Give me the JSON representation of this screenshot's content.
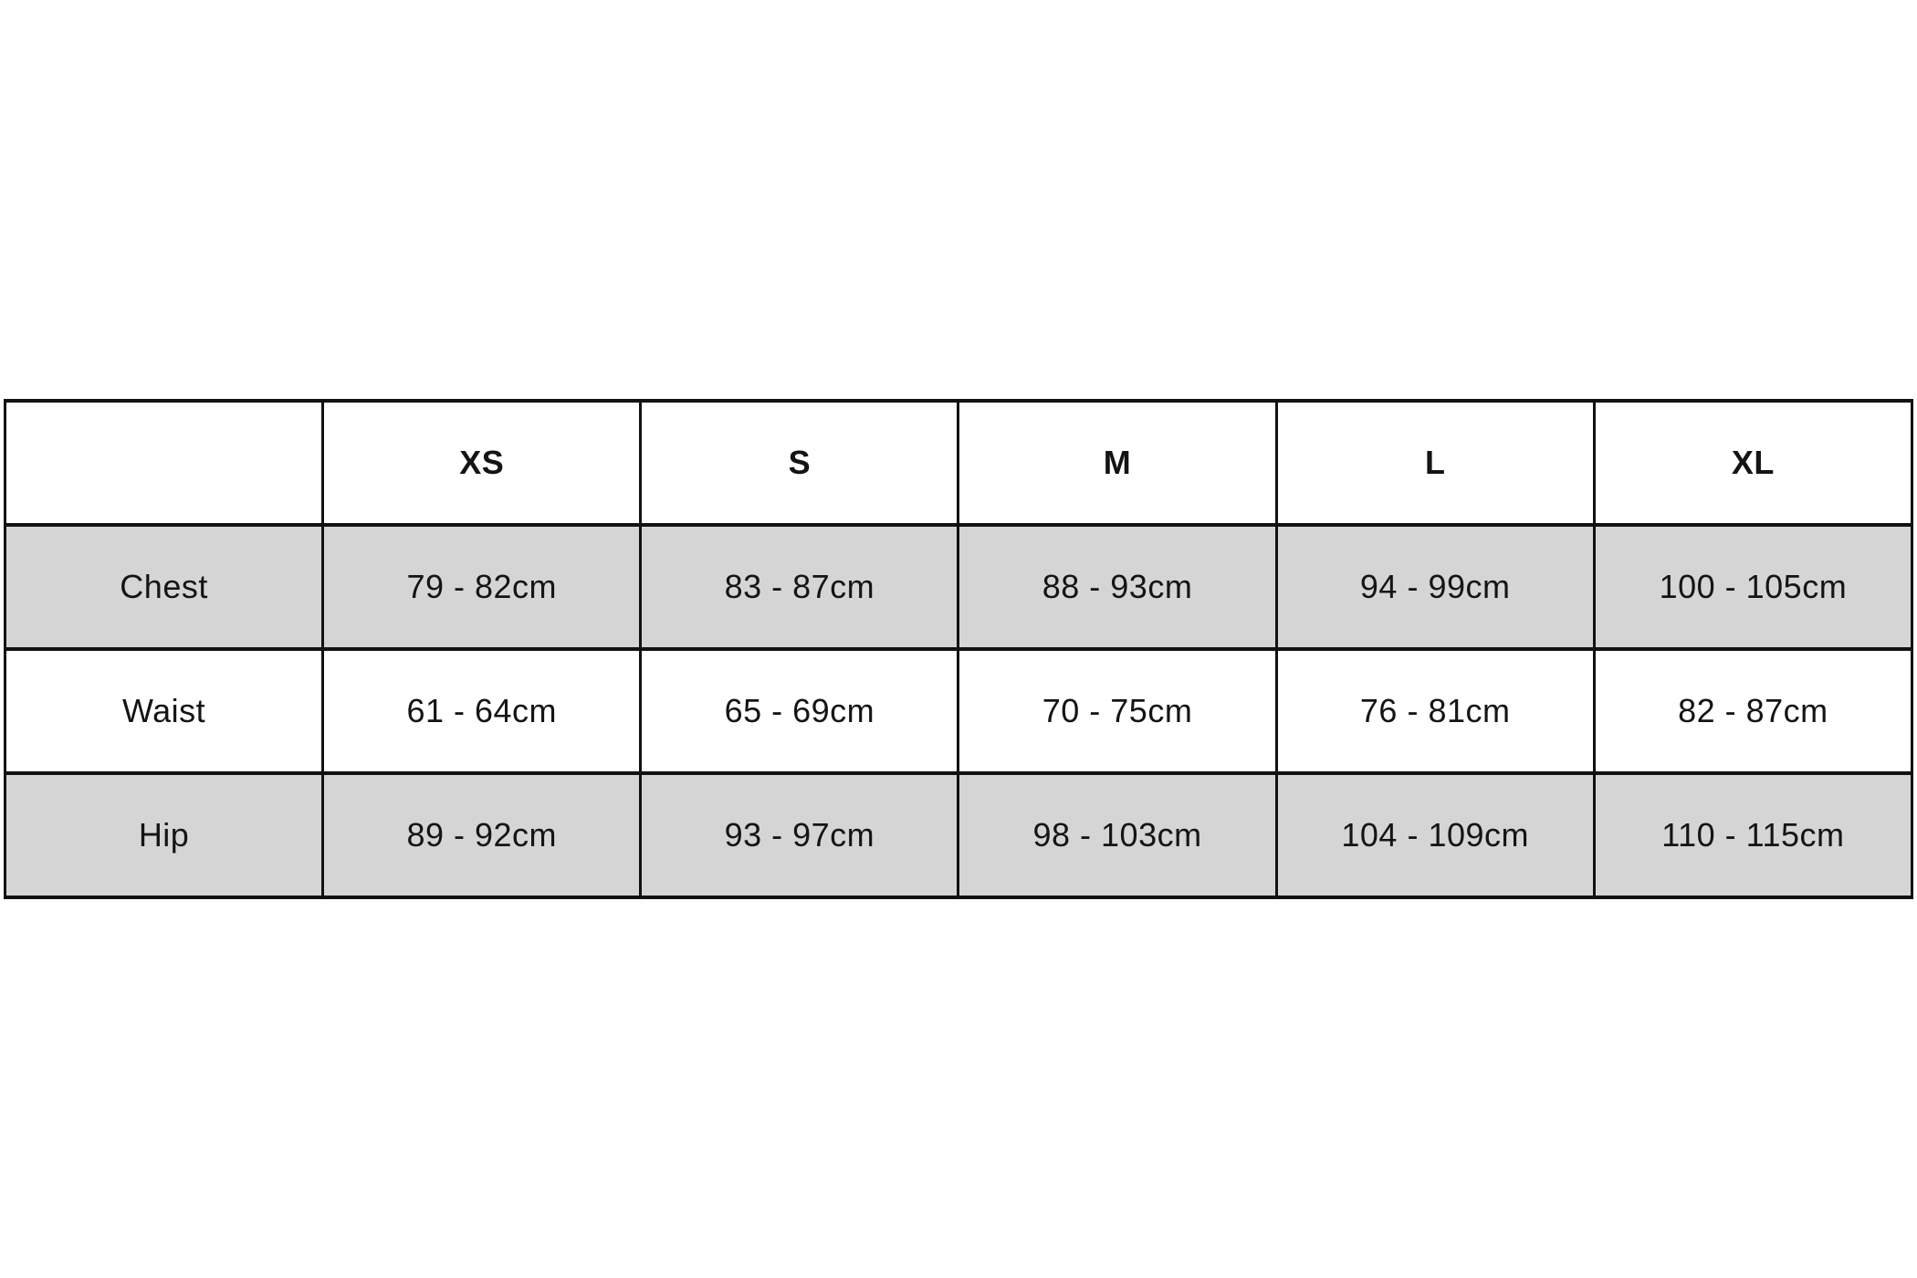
{
  "page": {
    "background": "#ffffff"
  },
  "chart_data": {
    "type": "table",
    "columns": [
      "",
      "XS",
      "S",
      "M",
      "L",
      "XL"
    ],
    "rows": [
      {
        "label": "Chest",
        "values": [
          "79 - 82cm",
          "83 - 87cm",
          "88 - 93cm",
          "94 - 99cm",
          "100 - 105cm"
        ]
      },
      {
        "label": "Waist",
        "values": [
          "61 - 64cm",
          "65 - 69cm",
          "70 - 75cm",
          "76 - 81cm",
          "82 - 87cm"
        ]
      },
      {
        "label": "Hip",
        "values": [
          "89 - 92cm",
          "93 - 97cm",
          "98 - 103cm",
          "104 - 109cm",
          "110 - 115cm"
        ]
      }
    ],
    "unit": "cm",
    "layout": {
      "grid": "on",
      "shaded_rows": [
        "Chest",
        "Hip"
      ]
    },
    "colors": {
      "row_shaded_background": "#d5d5d5",
      "row_background": "#ffffff",
      "border": "#121212",
      "text": "#141414"
    }
  }
}
